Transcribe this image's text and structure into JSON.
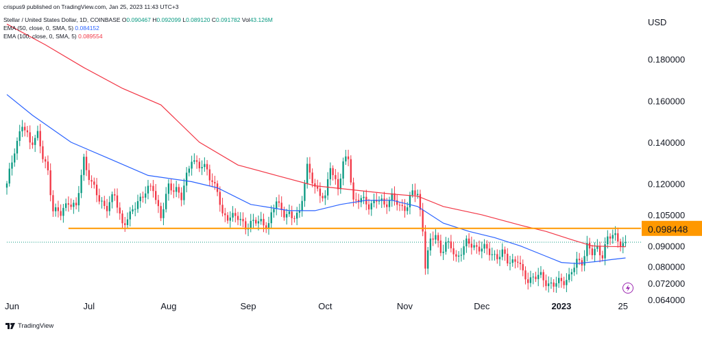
{
  "header": {
    "publisher": "crispus9 published on TradingView.com, Jan 25, 2023 11:43 UTC+3",
    "symbol_label": "Stellar / United States Dollar, 1D, COINBASE",
    "ohlc": {
      "o_label": "O",
      "o": "0.090467",
      "h_label": "H",
      "h": "0.092099",
      "l_label": "L",
      "l": "0.089120",
      "c_label": "C",
      "c": "0.091782",
      "vol_label": "Vol",
      "vol": "43.126M"
    },
    "ema50_label": "EMA (50, close, 0, SMA, 5)",
    "ema50_value": "0.084152",
    "ema100_label": "EMA (100, close, 0, SMA, 5)",
    "ema100_value": "0.089554"
  },
  "currency": "USD",
  "footer": {
    "brand": "TradingView"
  },
  "colors": {
    "up": "#089981",
    "down": "#f23645",
    "ema50": "#2962ff",
    "ema100": "#f23645",
    "hline": "#ff9800",
    "price_line": "#089981"
  },
  "icons": {
    "logo": "tradingview-logo-icon",
    "bolt": "lightning-bolt-icon"
  },
  "chart_data": {
    "type": "candlestick",
    "y_axis": {
      "ticks": [
        "0.180000",
        "0.160000",
        "0.140000",
        "0.120000",
        "0.105000",
        "0.090000",
        "0.080000",
        "0.072000",
        "0.064000"
      ],
      "tick_values": [
        0.18,
        0.16,
        0.14,
        0.12,
        0.105,
        0.09,
        0.08,
        0.072,
        0.064
      ],
      "ylim": [
        0.0634,
        0.202
      ]
    },
    "x_axis": {
      "ticks": [
        "Jun",
        "Jul",
        "Aug",
        "Sep",
        "Oct",
        "Nov",
        "Dec",
        "2023",
        "25"
      ],
      "bold_ticks": [
        "2023"
      ],
      "tick_index": [
        2,
        32,
        63,
        94,
        124,
        155,
        185,
        216,
        240
      ],
      "range": [
        0,
        247
      ]
    },
    "horizontal_line": {
      "value": 0.098448,
      "label": "0.098448",
      "start_index": 24
    },
    "last_price": 0.091782,
    "candle_segments": [
      [
        0,
        0.119
      ],
      [
        3,
        0.137
      ],
      [
        6,
        0.148
      ],
      [
        9,
        0.14
      ],
      [
        12,
        0.144
      ],
      [
        14,
        0.132
      ],
      [
        16,
        0.126
      ],
      [
        18,
        0.108
      ],
      [
        21,
        0.105
      ],
      [
        24,
        0.112
      ],
      [
        27,
        0.108
      ],
      [
        30,
        0.132
      ],
      [
        33,
        0.12
      ],
      [
        36,
        0.112
      ],
      [
        39,
        0.109
      ],
      [
        42,
        0.114
      ],
      [
        45,
        0.101
      ],
      [
        48,
        0.104
      ],
      [
        51,
        0.112
      ],
      [
        54,
        0.116
      ],
      [
        57,
        0.118
      ],
      [
        60,
        0.104
      ],
      [
        63,
        0.118
      ],
      [
        66,
        0.118
      ],
      [
        68,
        0.113
      ],
      [
        72,
        0.133
      ],
      [
        75,
        0.128
      ],
      [
        78,
        0.127
      ],
      [
        82,
        0.116
      ],
      [
        84,
        0.104
      ],
      [
        87,
        0.105
      ],
      [
        90,
        0.103
      ],
      [
        93,
        0.1
      ],
      [
        96,
        0.101
      ],
      [
        99,
        0.102
      ],
      [
        102,
        0.1
      ],
      [
        105,
        0.112
      ],
      [
        108,
        0.106
      ],
      [
        111,
        0.103
      ],
      [
        114,
        0.107
      ],
      [
        117,
        0.127
      ],
      [
        120,
        0.119
      ],
      [
        124,
        0.112
      ],
      [
        126,
        0.129
      ],
      [
        129,
        0.118
      ],
      [
        131,
        0.129
      ],
      [
        133,
        0.133
      ],
      [
        135,
        0.112
      ],
      [
        138,
        0.112
      ],
      [
        141,
        0.11
      ],
      [
        144,
        0.112
      ],
      [
        147,
        0.11
      ],
      [
        150,
        0.114
      ],
      [
        153,
        0.108
      ],
      [
        156,
        0.11
      ],
      [
        158,
        0.116
      ],
      [
        160,
        0.114
      ],
      [
        162,
        0.099
      ],
      [
        163,
        0.081
      ],
      [
        165,
        0.092
      ],
      [
        167,
        0.095
      ],
      [
        169,
        0.088
      ],
      [
        171,
        0.091
      ],
      [
        173,
        0.089
      ],
      [
        175,
        0.084
      ],
      [
        177,
        0.088
      ],
      [
        179,
        0.091
      ],
      [
        182,
        0.09
      ],
      [
        185,
        0.089
      ],
      [
        188,
        0.087
      ],
      [
        191,
        0.085
      ],
      [
        193,
        0.086
      ],
      [
        195,
        0.083
      ],
      [
        197,
        0.083
      ],
      [
        199,
        0.083
      ],
      [
        201,
        0.076
      ],
      [
        203,
        0.074
      ],
      [
        205,
        0.075
      ],
      [
        208,
        0.075
      ],
      [
        211,
        0.072
      ],
      [
        213,
        0.071
      ],
      [
        216,
        0.073
      ],
      [
        219,
        0.075
      ],
      [
        222,
        0.082
      ],
      [
        224,
        0.083
      ],
      [
        226,
        0.09
      ],
      [
        228,
        0.086
      ],
      [
        230,
        0.089
      ],
      [
        232,
        0.086
      ],
      [
        234,
        0.093
      ],
      [
        236,
        0.095
      ],
      [
        237,
        0.095
      ],
      [
        239,
        0.092
      ],
      [
        240,
        0.0905
      ],
      [
        241,
        0.0918
      ]
    ],
    "ema50": [
      [
        0,
        0.163
      ],
      [
        10,
        0.153
      ],
      [
        25,
        0.14
      ],
      [
        40,
        0.132
      ],
      [
        55,
        0.124
      ],
      [
        72,
        0.121
      ],
      [
        82,
        0.118
      ],
      [
        95,
        0.11
      ],
      [
        110,
        0.107
      ],
      [
        120,
        0.107
      ],
      [
        130,
        0.11
      ],
      [
        140,
        0.112
      ],
      [
        150,
        0.112
      ],
      [
        160,
        0.109
      ],
      [
        170,
        0.101
      ],
      [
        180,
        0.097
      ],
      [
        190,
        0.094
      ],
      [
        200,
        0.09
      ],
      [
        210,
        0.085
      ],
      [
        216,
        0.082
      ],
      [
        222,
        0.0815
      ],
      [
        230,
        0.0825
      ],
      [
        236,
        0.0835
      ],
      [
        241,
        0.0842
      ]
    ],
    "ema100": [
      [
        0,
        0.197
      ],
      [
        15,
        0.187
      ],
      [
        30,
        0.176
      ],
      [
        45,
        0.166
      ],
      [
        60,
        0.158
      ],
      [
        75,
        0.14
      ],
      [
        90,
        0.129
      ],
      [
        105,
        0.124
      ],
      [
        120,
        0.119
      ],
      [
        135,
        0.117
      ],
      [
        150,
        0.115
      ],
      [
        160,
        0.114
      ],
      [
        170,
        0.109
      ],
      [
        185,
        0.105
      ],
      [
        200,
        0.1
      ],
      [
        210,
        0.097
      ],
      [
        220,
        0.093
      ],
      [
        228,
        0.09
      ],
      [
        235,
        0.0897
      ],
      [
        241,
        0.0896
      ]
    ]
  }
}
